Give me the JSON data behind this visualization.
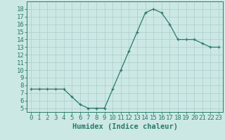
{
  "x": [
    0,
    1,
    2,
    3,
    4,
    5,
    6,
    7,
    8,
    9,
    10,
    11,
    12,
    13,
    14,
    15,
    16,
    17,
    18,
    19,
    20,
    21,
    22,
    23
  ],
  "y": [
    7.5,
    7.5,
    7.5,
    7.5,
    7.5,
    6.5,
    5.5,
    5.0,
    5.0,
    5.0,
    7.5,
    10.0,
    12.5,
    15.0,
    17.5,
    18.0,
    17.5,
    16.0,
    14.0,
    14.0,
    14.0,
    13.5,
    13.0,
    13.0
  ],
  "line_color": "#2a7a6a",
  "marker": "+",
  "bg_color": "#cce8e4",
  "grid_color": "#aacccc",
  "xlabel": "Humidex (Indice chaleur)",
  "ylim": [
    4.5,
    19
  ],
  "xlim": [
    -0.5,
    23.5
  ],
  "yticks": [
    5,
    6,
    7,
    8,
    9,
    10,
    11,
    12,
    13,
    14,
    15,
    16,
    17,
    18
  ],
  "xticks": [
    0,
    1,
    2,
    3,
    4,
    5,
    6,
    7,
    8,
    9,
    10,
    11,
    12,
    13,
    14,
    15,
    16,
    17,
    18,
    19,
    20,
    21,
    22,
    23
  ],
  "xtick_labels": [
    "0",
    "1",
    "2",
    "3",
    "4",
    "5",
    "6",
    "7",
    "8",
    "9",
    "10",
    "11",
    "12",
    "13",
    "14",
    "15",
    "16",
    "17",
    "18",
    "19",
    "20",
    "21",
    "22",
    "23"
  ],
  "tick_color": "#2a7a6a",
  "label_color": "#2a7a6a",
  "label_fontsize": 7.5,
  "tick_fontsize": 6.5
}
